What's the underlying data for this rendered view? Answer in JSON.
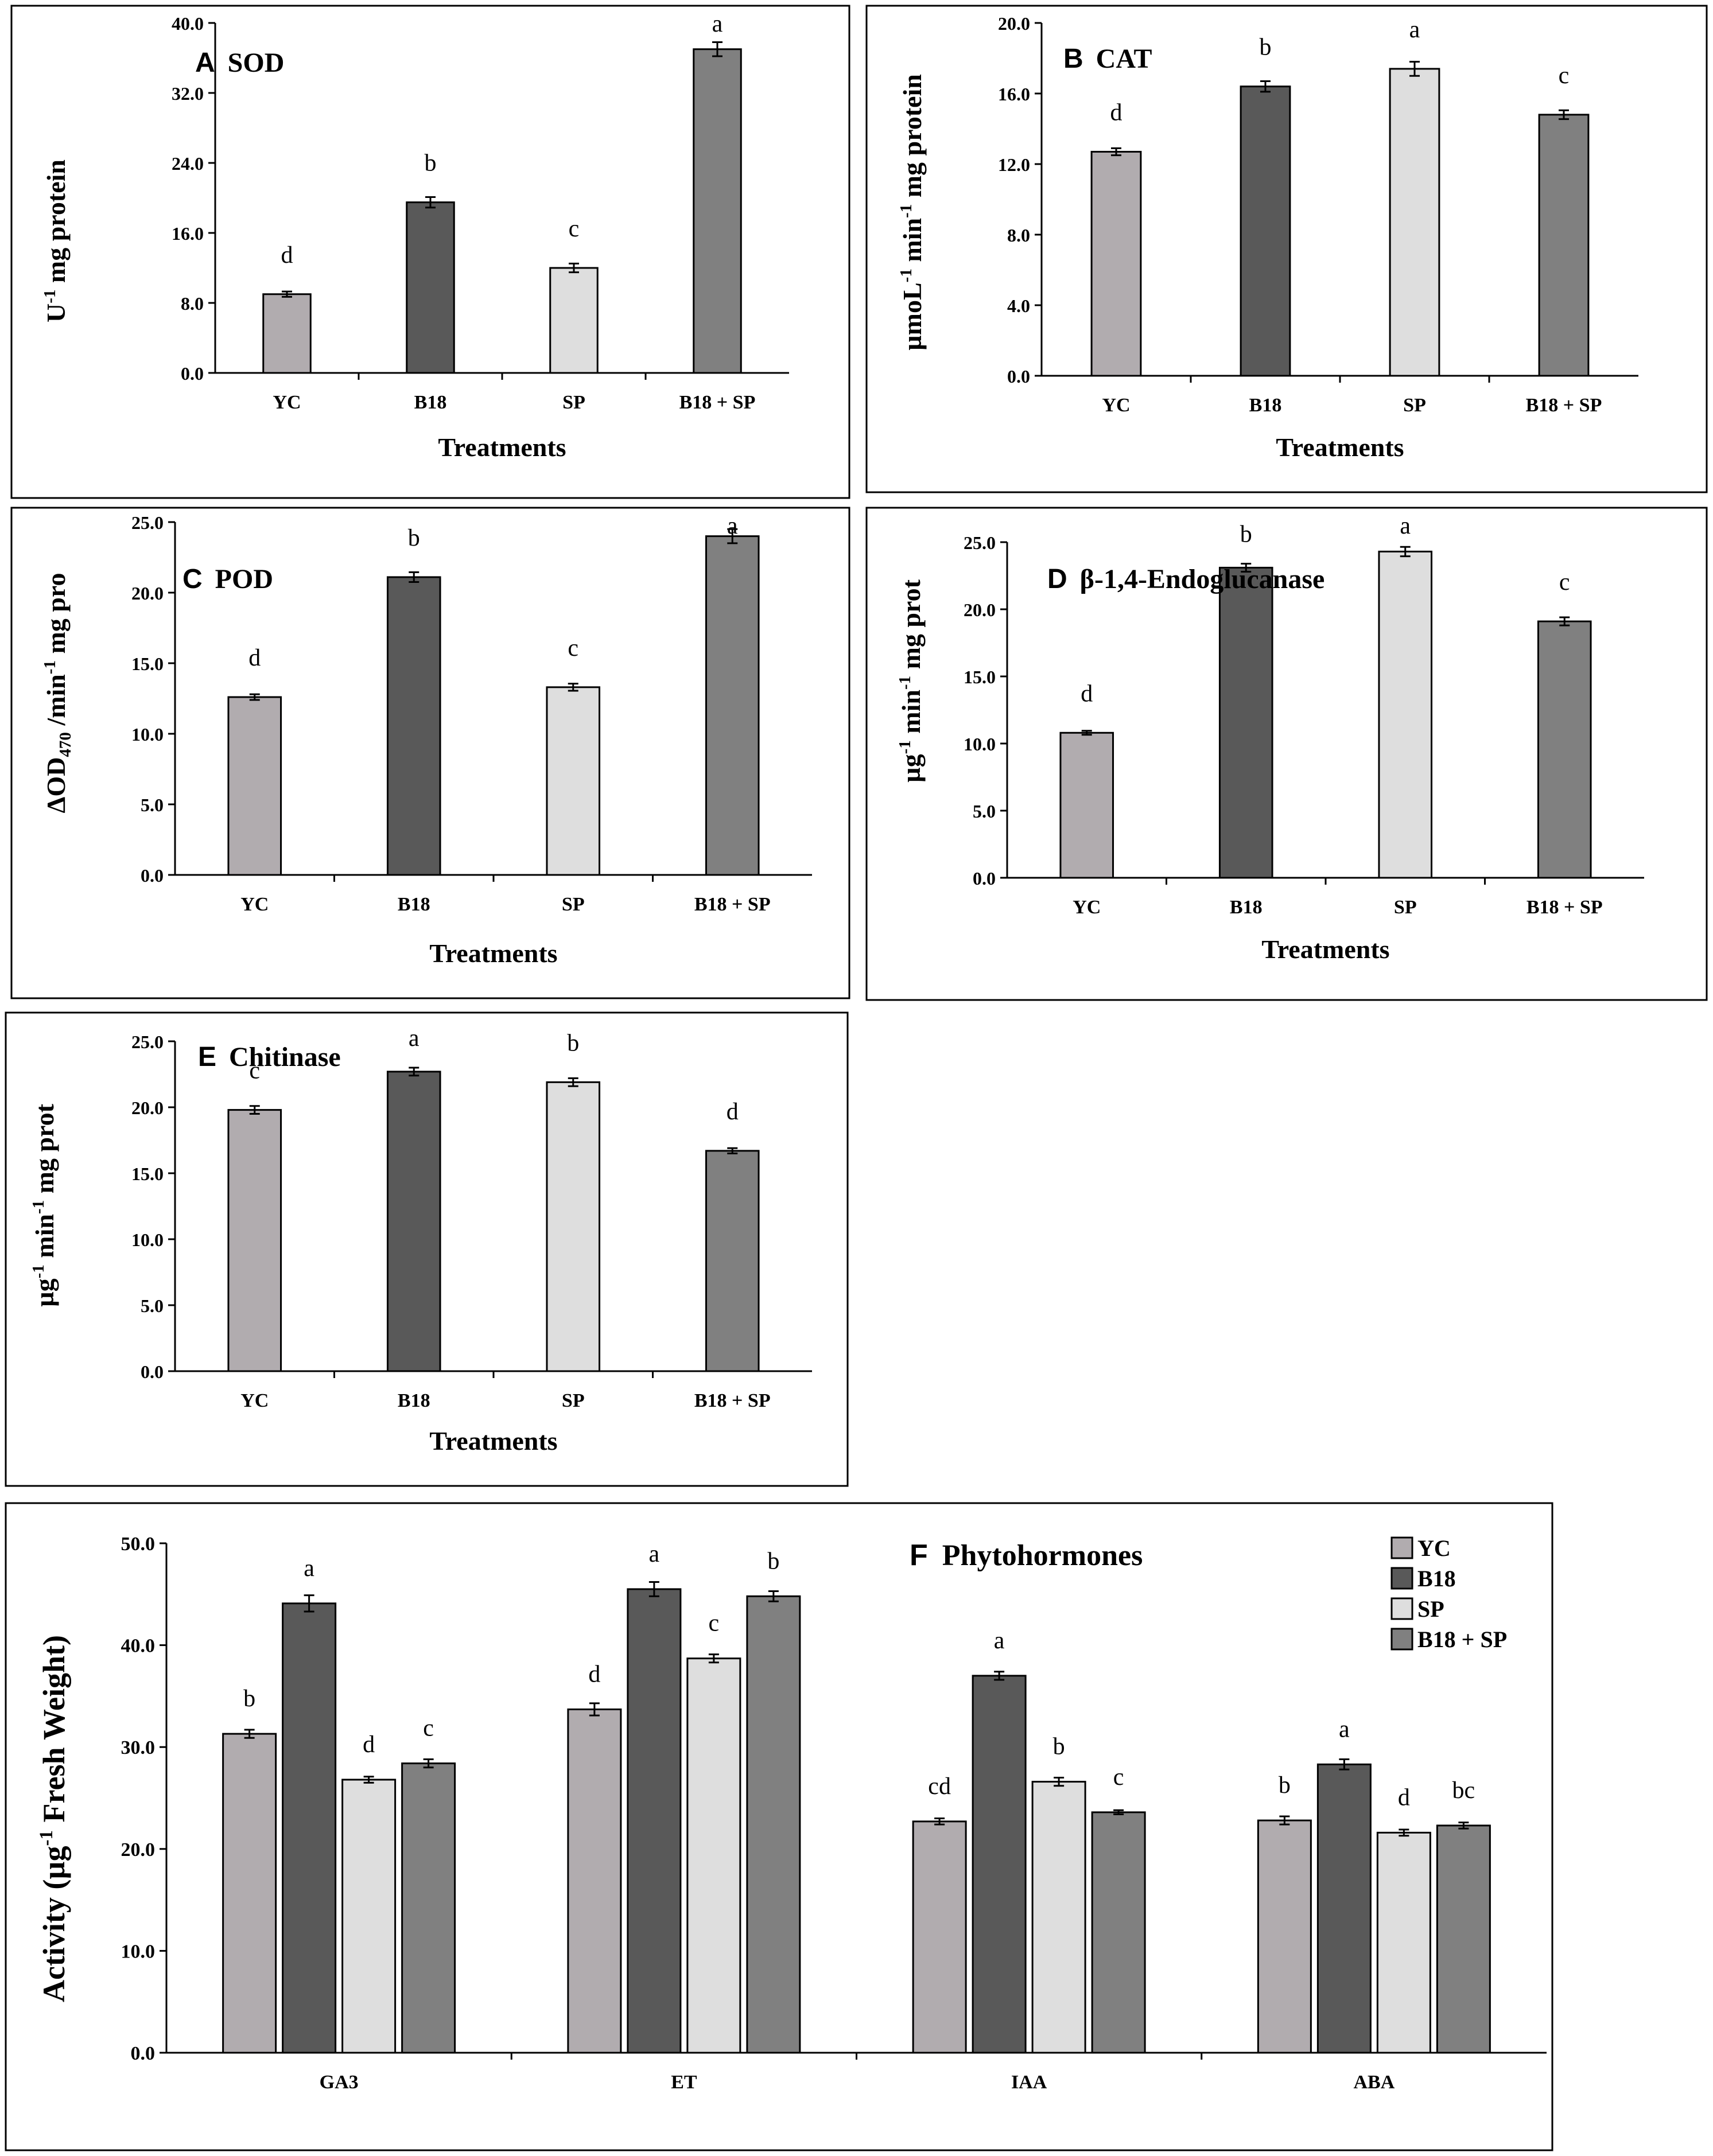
{
  "colors": {
    "YC": "#b1acaf",
    "B18": "#595959",
    "SP": "#dedede",
    "B18 + SP": "#808080",
    "frame": "#000000",
    "background": "#ffffff"
  },
  "chart_data": [
    {
      "id": "A",
      "type": "bar",
      "panel_letter": "A",
      "title": "SOD",
      "ylabel_parts": {
        "pre": "U",
        "sup": "-1",
        "post": " mg protein"
      },
      "xlabel": "Treatments",
      "categories": [
        "YC",
        "B18",
        "SP",
        "B18 + SP"
      ],
      "values": [
        9.0,
        19.5,
        12.0,
        37.0
      ],
      "errors": [
        0.3,
        0.6,
        0.5,
        0.8
      ],
      "letters": [
        "d",
        "b",
        "c",
        "a"
      ],
      "ylim": [
        0,
        40
      ],
      "yticks": [
        "0.0",
        "8.0",
        "16.0",
        "24.0",
        "32.0",
        "40.0"
      ]
    },
    {
      "id": "B",
      "type": "bar",
      "panel_letter": "B",
      "title": "CAT",
      "ylabel_parts": {
        "pre": "µmoL",
        "sup": "-1",
        "mid": " min",
        "sup2": "-1",
        "post": " mg protein"
      },
      "xlabel": "Treatments",
      "categories": [
        "YC",
        "B18",
        "SP",
        "B18 + SP"
      ],
      "values": [
        12.7,
        16.4,
        17.4,
        14.8
      ],
      "errors": [
        0.2,
        0.3,
        0.4,
        0.25
      ],
      "letters": [
        "d",
        "b",
        "a",
        "c"
      ],
      "ylim": [
        0,
        20
      ],
      "yticks": [
        "0.0",
        "4.0",
        "8.0",
        "12.0",
        "16.0",
        "20.0"
      ]
    },
    {
      "id": "C",
      "type": "bar",
      "panel_letter": "C",
      "title": "POD",
      "ylabel_parts": {
        "pre": "ΔOD",
        "sub": "470",
        "mid": " /min",
        "sup2": "-1",
        "post": " mg pro"
      },
      "xlabel": "Treatments",
      "categories": [
        "YC",
        "B18",
        "SP",
        "B18 + SP"
      ],
      "values": [
        12.6,
        21.1,
        13.3,
        24.0
      ],
      "errors": [
        0.2,
        0.35,
        0.25,
        0.5
      ],
      "letters": [
        "d",
        "b",
        "c",
        "a"
      ],
      "ylim": [
        0,
        25
      ],
      "yticks": [
        "0.0",
        "5.0",
        "10.0",
        "15.0",
        "20.0",
        "25.0"
      ]
    },
    {
      "id": "D",
      "type": "bar",
      "panel_letter": "D",
      "title": "β-1,4-Endoglucanase",
      "ylabel_parts": {
        "pre": "µg",
        "sup": "-1",
        "mid": " min",
        "sup2": "-1",
        "post": " mg prot"
      },
      "xlabel": "Treatments",
      "categories": [
        "YC",
        "B18",
        "SP",
        "B18 + SP"
      ],
      "values": [
        10.8,
        23.1,
        24.3,
        19.1
      ],
      "errors": [
        0.15,
        0.3,
        0.35,
        0.3
      ],
      "letters": [
        "d",
        "b",
        "a",
        "c"
      ],
      "ylim": [
        0,
        25
      ],
      "yticks": [
        "0.0",
        "5.0",
        "10.0",
        "15.0",
        "20.0",
        "25.0"
      ]
    },
    {
      "id": "E",
      "type": "bar",
      "panel_letter": "E",
      "title": "Chitinase",
      "ylabel_parts": {
        "pre": "µg",
        "sup": "-1",
        "mid": " min",
        "sup2": "-1",
        "post": " mg prot"
      },
      "xlabel": "Treatments",
      "categories": [
        "YC",
        "B18",
        "SP",
        "B18 + SP"
      ],
      "values": [
        19.8,
        22.7,
        21.9,
        16.7
      ],
      "errors": [
        0.3,
        0.3,
        0.3,
        0.2
      ],
      "letters": [
        "c",
        "a",
        "b",
        "d"
      ],
      "ylim": [
        0,
        25
      ],
      "yticks": [
        "0.0",
        "5.0",
        "10.0",
        "15.0",
        "20.0",
        "25.0"
      ]
    },
    {
      "id": "F",
      "type": "bar",
      "panel_letter": "F",
      "title": "Phytohormones",
      "ylabel_parts": {
        "pre": "Activity (µg",
        "sup": "-1",
        "post": " Fresh Weight)"
      },
      "categories": [
        "GA3",
        "ET",
        "IAA",
        "ABA"
      ],
      "series": [
        {
          "name": "YC",
          "values": [
            31.3,
            33.7,
            22.7,
            22.8
          ],
          "errors": [
            0.4,
            0.6,
            0.3,
            0.4
          ],
          "letters": [
            "b",
            "d",
            "cd",
            "b"
          ]
        },
        {
          "name": "B18",
          "values": [
            44.1,
            45.5,
            37.0,
            28.3
          ],
          "errors": [
            0.8,
            0.7,
            0.4,
            0.5
          ],
          "letters": [
            "a",
            "a",
            "a",
            "a"
          ]
        },
        {
          "name": "SP",
          "values": [
            26.8,
            38.7,
            26.6,
            21.6
          ],
          "errors": [
            0.3,
            0.4,
            0.4,
            0.3
          ],
          "letters": [
            "d",
            "c",
            "b",
            "d"
          ]
        },
        {
          "name": "B18 + SP",
          "values": [
            28.4,
            44.8,
            23.6,
            22.3
          ],
          "errors": [
            0.4,
            0.5,
            0.2,
            0.3
          ],
          "letters": [
            "c",
            "b",
            "c",
            "bc"
          ]
        }
      ],
      "legend": [
        "YC",
        "B18",
        "SP",
        "B18 + SP"
      ],
      "legend_position": "top-right",
      "ylim": [
        0,
        50
      ],
      "yticks": [
        "0.0",
        "10.0",
        "20.0",
        "30.0",
        "40.0",
        "50.0"
      ]
    }
  ]
}
